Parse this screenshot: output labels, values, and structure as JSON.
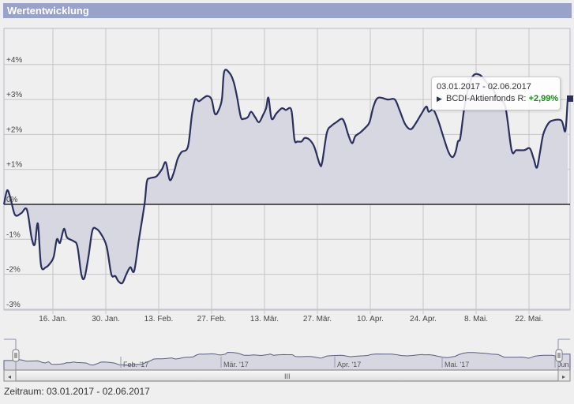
{
  "header": {
    "title": "Wertentwicklung"
  },
  "colors": {
    "header_bg": "#99a2c8",
    "line": "#2a2f5e",
    "area_fill": "#d6d7e0",
    "plot_bg": "#efefef",
    "grid": "#c0c0c0",
    "positive_value": "#1a8a1a"
  },
  "tooltip": {
    "range": "03.01.2017 - 02.06.2017",
    "series_label": "BCDI-Aktienfonds R:",
    "value": "+2,99%"
  },
  "navigator": {
    "month_labels": [
      "Feb. '17",
      "Mär. '17",
      "Apr. '17",
      "Mai. '17",
      "Jun."
    ],
    "scrollbar_grip": "III",
    "left_arrow": "◂",
    "right_arrow": "▸"
  },
  "footer": {
    "period_label": "Zeitraum: 03.01.2017 - 02.06.2017"
  },
  "chart_data": {
    "type": "area",
    "title": "Wertentwicklung",
    "series": [
      {
        "name": "BCDI-Aktienfonds R",
        "final_value_pct": 2.99
      }
    ],
    "xlabel": "",
    "ylabel": "",
    "x_tick_labels": [
      "16. Jan.",
      "30. Jan.",
      "13. Feb.",
      "27. Feb.",
      "13. Mär.",
      "27. Mär.",
      "10. Apr.",
      "24. Apr.",
      "8. Mai.",
      "22. Mai."
    ],
    "y_tick_labels": [
      "+4%",
      "+3%",
      "+2%",
      "+1%",
      "0%",
      "-1%",
      "-2%",
      "-3%"
    ],
    "ylim": [
      -3,
      4
    ],
    "grid": true,
    "x": [
      "03.01.",
      "04.01.",
      "05.01.",
      "06.01.",
      "09.01.",
      "10.01.",
      "11.01.",
      "12.01.",
      "13.01.",
      "16.01.",
      "17.01.",
      "18.01.",
      "19.01.",
      "20.01.",
      "23.01.",
      "24.01.",
      "25.01.",
      "26.01.",
      "27.01.",
      "30.01.",
      "31.01.",
      "01.02.",
      "02.02.",
      "03.02.",
      "06.02.",
      "07.02.",
      "08.02.",
      "09.02.",
      "10.02.",
      "13.02.",
      "14.02.",
      "15.02.",
      "16.02.",
      "17.02.",
      "20.02.",
      "21.02.",
      "22.02.",
      "23.02.",
      "24.02.",
      "27.02.",
      "28.02.",
      "01.03.",
      "02.03.",
      "03.03.",
      "06.03.",
      "07.03.",
      "08.03.",
      "09.03.",
      "10.03.",
      "13.03.",
      "14.03.",
      "15.03.",
      "16.03.",
      "17.03.",
      "20.03.",
      "21.03.",
      "22.03.",
      "23.03.",
      "24.03.",
      "27.03.",
      "28.03.",
      "29.03.",
      "30.03.",
      "31.03.",
      "03.04.",
      "04.04.",
      "05.04.",
      "06.04.",
      "07.04.",
      "10.04.",
      "11.04.",
      "12.04.",
      "13.04.",
      "18.04.",
      "19.04.",
      "20.04.",
      "21.04.",
      "24.04.",
      "25.04.",
      "26.04.",
      "27.04.",
      "28.04.",
      "02.05.",
      "03.05.",
      "04.05.",
      "05.05.",
      "08.05.",
      "09.05.",
      "10.05.",
      "11.05.",
      "12.05.",
      "15.05.",
      "16.05.",
      "17.05.",
      "18.05.",
      "19.05.",
      "22.05.",
      "23.05.",
      "24.05.",
      "25.05.",
      "26.05.",
      "29.05.",
      "30.05.",
      "31.05.",
      "01.06.",
      "02.06."
    ],
    "points": [
      [
        5,
        0.0
      ],
      [
        9,
        0.4
      ],
      [
        13,
        0.2
      ],
      [
        19,
        -0.3
      ],
      [
        27,
        -0.25
      ],
      [
        34,
        -0.15
      ],
      [
        40,
        -0.95
      ],
      [
        44,
        -1.15
      ],
      [
        48,
        -0.55
      ],
      [
        52,
        -1.75
      ],
      [
        58,
        -1.8
      ],
      [
        63,
        -1.7
      ],
      [
        68,
        -1.5
      ],
      [
        72,
        -1.0
      ],
      [
        76,
        -1.1
      ],
      [
        81,
        -0.7
      ],
      [
        85,
        -0.95
      ],
      [
        93,
        -1.05
      ],
      [
        98,
        -1.2
      ],
      [
        103,
        -2.0
      ],
      [
        107,
        -2.1
      ],
      [
        112,
        -1.5
      ],
      [
        117,
        -0.75
      ],
      [
        122,
        -0.7
      ],
      [
        128,
        -0.85
      ],
      [
        135,
        -1.2
      ],
      [
        141,
        -2.0
      ],
      [
        146,
        -2.05
      ],
      [
        150,
        -2.2
      ],
      [
        155,
        -2.25
      ],
      [
        160,
        -2.0
      ],
      [
        165,
        -1.8
      ],
      [
        170,
        -1.9
      ],
      [
        176,
        -1.0
      ],
      [
        183,
        0.0
      ],
      [
        186,
        0.65
      ],
      [
        190,
        0.75
      ],
      [
        198,
        0.8
      ],
      [
        205,
        1.0
      ],
      [
        210,
        1.2
      ],
      [
        215,
        0.7
      ],
      [
        220,
        0.9
      ],
      [
        225,
        1.3
      ],
      [
        230,
        1.5
      ],
      [
        238,
        1.65
      ],
      [
        243,
        2.55
      ],
      [
        247,
        3.0
      ],
      [
        252,
        2.95
      ],
      [
        258,
        3.05
      ],
      [
        263,
        3.1
      ],
      [
        268,
        3.0
      ],
      [
        272,
        2.6
      ],
      [
        276,
        2.65
      ],
      [
        281,
        3.0
      ],
      [
        284,
        3.8
      ],
      [
        291,
        3.75
      ],
      [
        296,
        3.5
      ],
      [
        300,
        3.1
      ],
      [
        305,
        2.5
      ],
      [
        309,
        2.45
      ],
      [
        314,
        2.5
      ],
      [
        318,
        2.65
      ],
      [
        323,
        2.5
      ],
      [
        328,
        2.35
      ],
      [
        333,
        2.55
      ],
      [
        337,
        2.75
      ],
      [
        340,
        3.05
      ],
      [
        344,
        2.45
      ],
      [
        350,
        2.6
      ],
      [
        357,
        2.75
      ],
      [
        362,
        2.7
      ],
      [
        369,
        2.7
      ],
      [
        373,
        1.85
      ],
      [
        377,
        1.8
      ],
      [
        382,
        1.8
      ],
      [
        386,
        1.9
      ],
      [
        392,
        1.85
      ],
      [
        398,
        1.65
      ],
      [
        405,
        1.15
      ],
      [
        408,
        1.2
      ],
      [
        414,
        2.05
      ],
      [
        420,
        2.25
      ],
      [
        426,
        2.35
      ],
      [
        433,
        2.45
      ],
      [
        437,
        2.3
      ],
      [
        441,
        2.0
      ],
      [
        446,
        1.75
      ],
      [
        450,
        1.95
      ],
      [
        456,
        2.05
      ],
      [
        463,
        2.2
      ],
      [
        468,
        2.35
      ],
      [
        473,
        2.8
      ],
      [
        479,
        3.05
      ],
      [
        491,
        3.0
      ],
      [
        500,
        3.0
      ],
      [
        506,
        2.7
      ],
      [
        513,
        2.3
      ],
      [
        520,
        2.15
      ],
      [
        526,
        2.3
      ],
      [
        534,
        2.6
      ],
      [
        540,
        2.8
      ],
      [
        543,
        2.65
      ],
      [
        549,
        2.7
      ],
      [
        555,
        2.4
      ],
      [
        562,
        1.9
      ],
      [
        568,
        1.5
      ],
      [
        573,
        1.35
      ],
      [
        577,
        1.5
      ],
      [
        580,
        1.8
      ],
      [
        583,
        1.9
      ],
      [
        588,
        2.75
      ],
      [
        594,
        3.4
      ],
      [
        600,
        3.7
      ],
      [
        608,
        3.7
      ],
      [
        616,
        3.5
      ],
      [
        624,
        3.3
      ],
      [
        631,
        3.0
      ],
      [
        640,
        2.8
      ],
      [
        648,
        1.55
      ],
      [
        654,
        1.55
      ],
      [
        664,
        1.55
      ],
      [
        671,
        1.6
      ],
      [
        676,
        1.3
      ],
      [
        680,
        1.05
      ],
      [
        684,
        1.5
      ],
      [
        688,
        2.0
      ],
      [
        694,
        2.3
      ],
      [
        700,
        2.4
      ],
      [
        711,
        2.4
      ],
      [
        716,
        2.1
      ],
      [
        719,
        2.99
      ]
    ]
  }
}
